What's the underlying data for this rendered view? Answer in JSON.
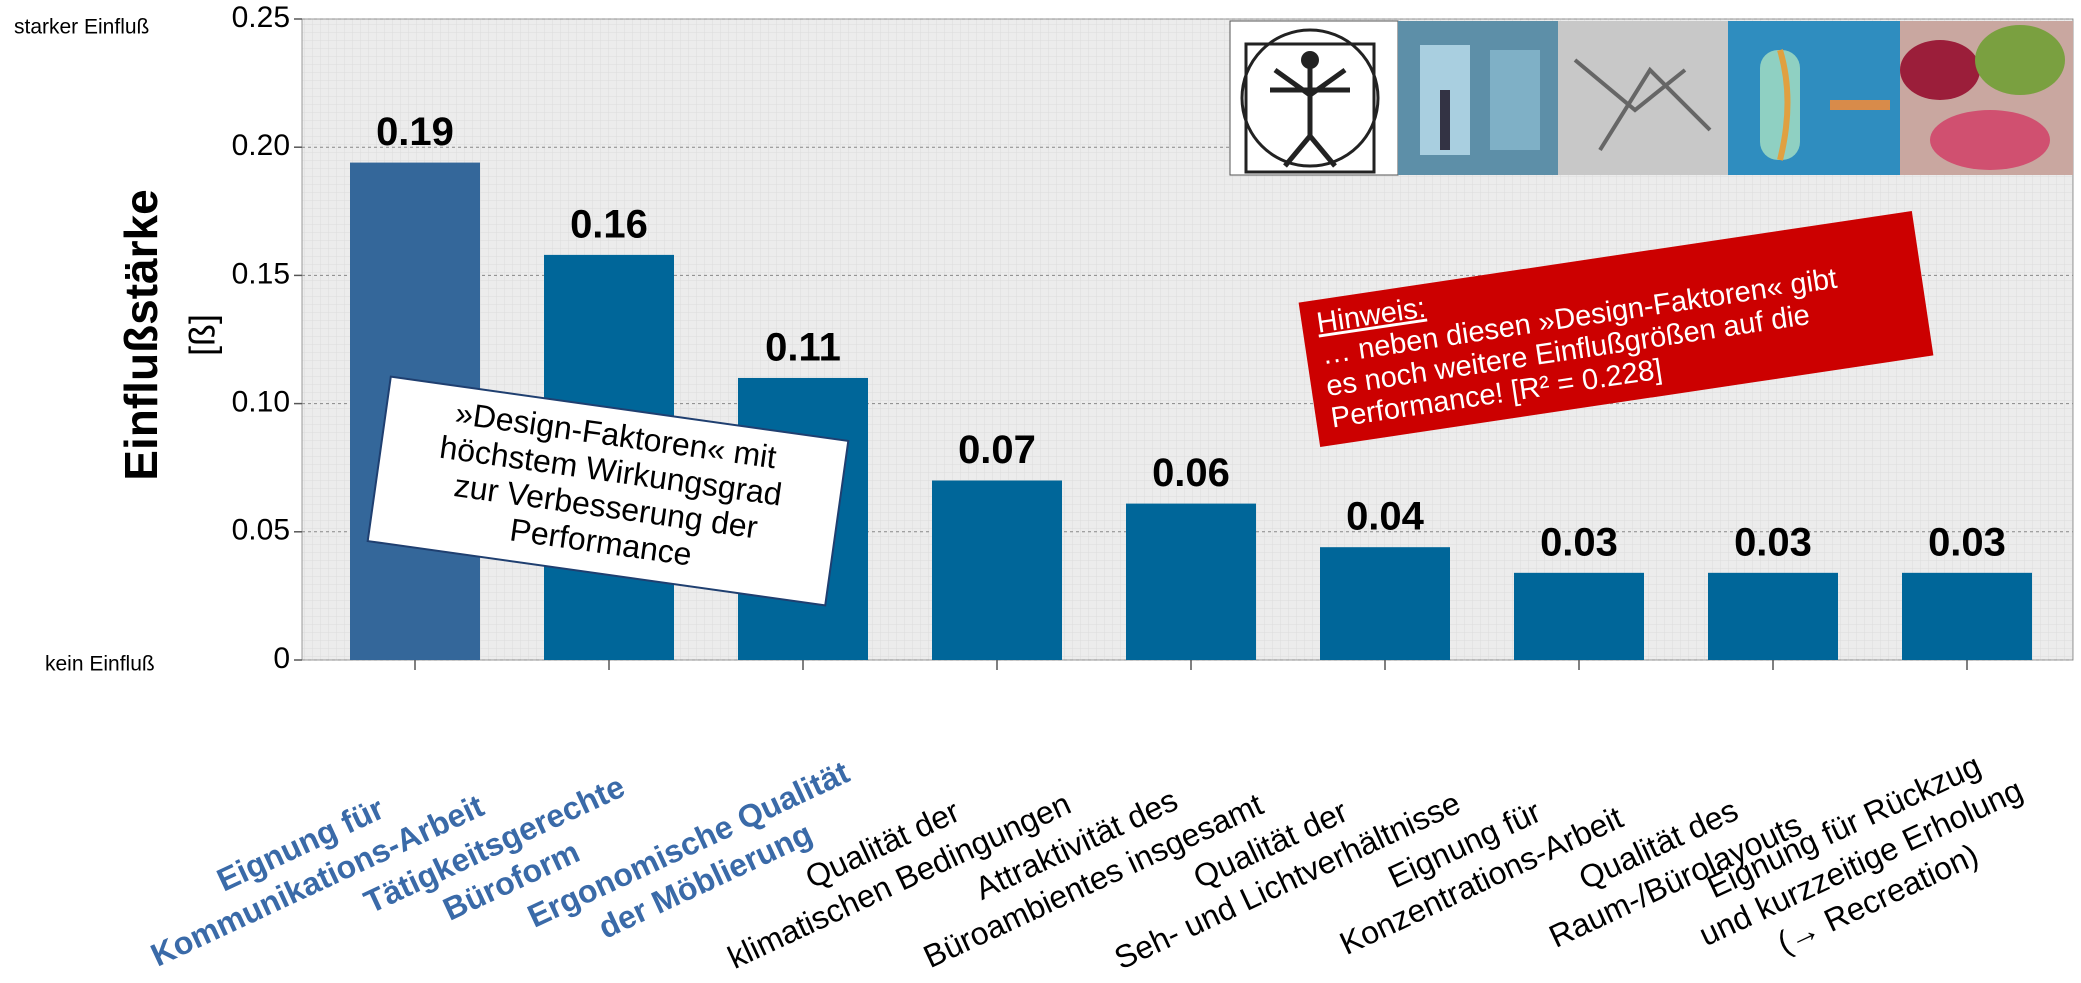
{
  "chart_data": {
    "type": "bar",
    "y_axis_label": "Einflußstärke",
    "y_axis_unit": "[ß]",
    "y_top_label": "starker Einfluß",
    "y_bottom_label": "kein Einfluß",
    "categories": [
      "Eignung für\nKommunikations-Arbeit",
      "Tätigkeitsgerechte\nBüroform",
      "Ergonomische Qualität\nder Möblierung",
      "Qualität der\nklimatischen Bedingungen",
      "Attraktivität des\nBüroambientes insgesamt",
      "Qualität der\nSeh- und Lichtverhältnisse",
      "Eignung für\nKonzentrations-Arbeit",
      "Qualität des\nRaum-/Bürolayouts",
      "Eignung für Rückzug\nund  kurzzeitige Erholung\n(→ Recreation)"
    ],
    "values": [
      0.194,
      0.158,
      0.11,
      0.07,
      0.061,
      0.044,
      0.034,
      0.034,
      0.034
    ],
    "value_labels": [
      "0.19",
      "0.16",
      "0.11",
      "0.07",
      "0.06",
      "0.04",
      "0.03",
      "0.03",
      "0.03"
    ],
    "colors": [
      "#34679a",
      "#006699",
      "#006699",
      "#006699",
      "#006699",
      "#006699",
      "#006699",
      "#006699",
      "#006699"
    ],
    "category_colors": [
      "#3a6aa8",
      "#3a6aa8",
      "#3a6aa8",
      "#000000",
      "#000000",
      "#000000",
      "#000000",
      "#000000",
      "#000000"
    ],
    "ylim": [
      0,
      0.25
    ],
    "yticks": [
      0,
      0.05,
      {
        "value": 0.1,
        "label": "0.10"
      },
      0.15,
      {
        "value": 0.2,
        "label": "0.20"
      },
      0.25
    ],
    "grid": true,
    "annotations": {
      "design_note": [
        "»Design-Faktoren« mit",
        "höchstem Wirkungsgrad",
        "zur Verbesserung der",
        "Performance"
      ],
      "hint_title": "Hinweis:",
      "hint_lines": [
        "… neben diesen »Design-Faktoren« gibt",
        "es noch weitere Einflußgrößen auf die",
        "Performance!  [R² = 0.228]"
      ]
    }
  }
}
